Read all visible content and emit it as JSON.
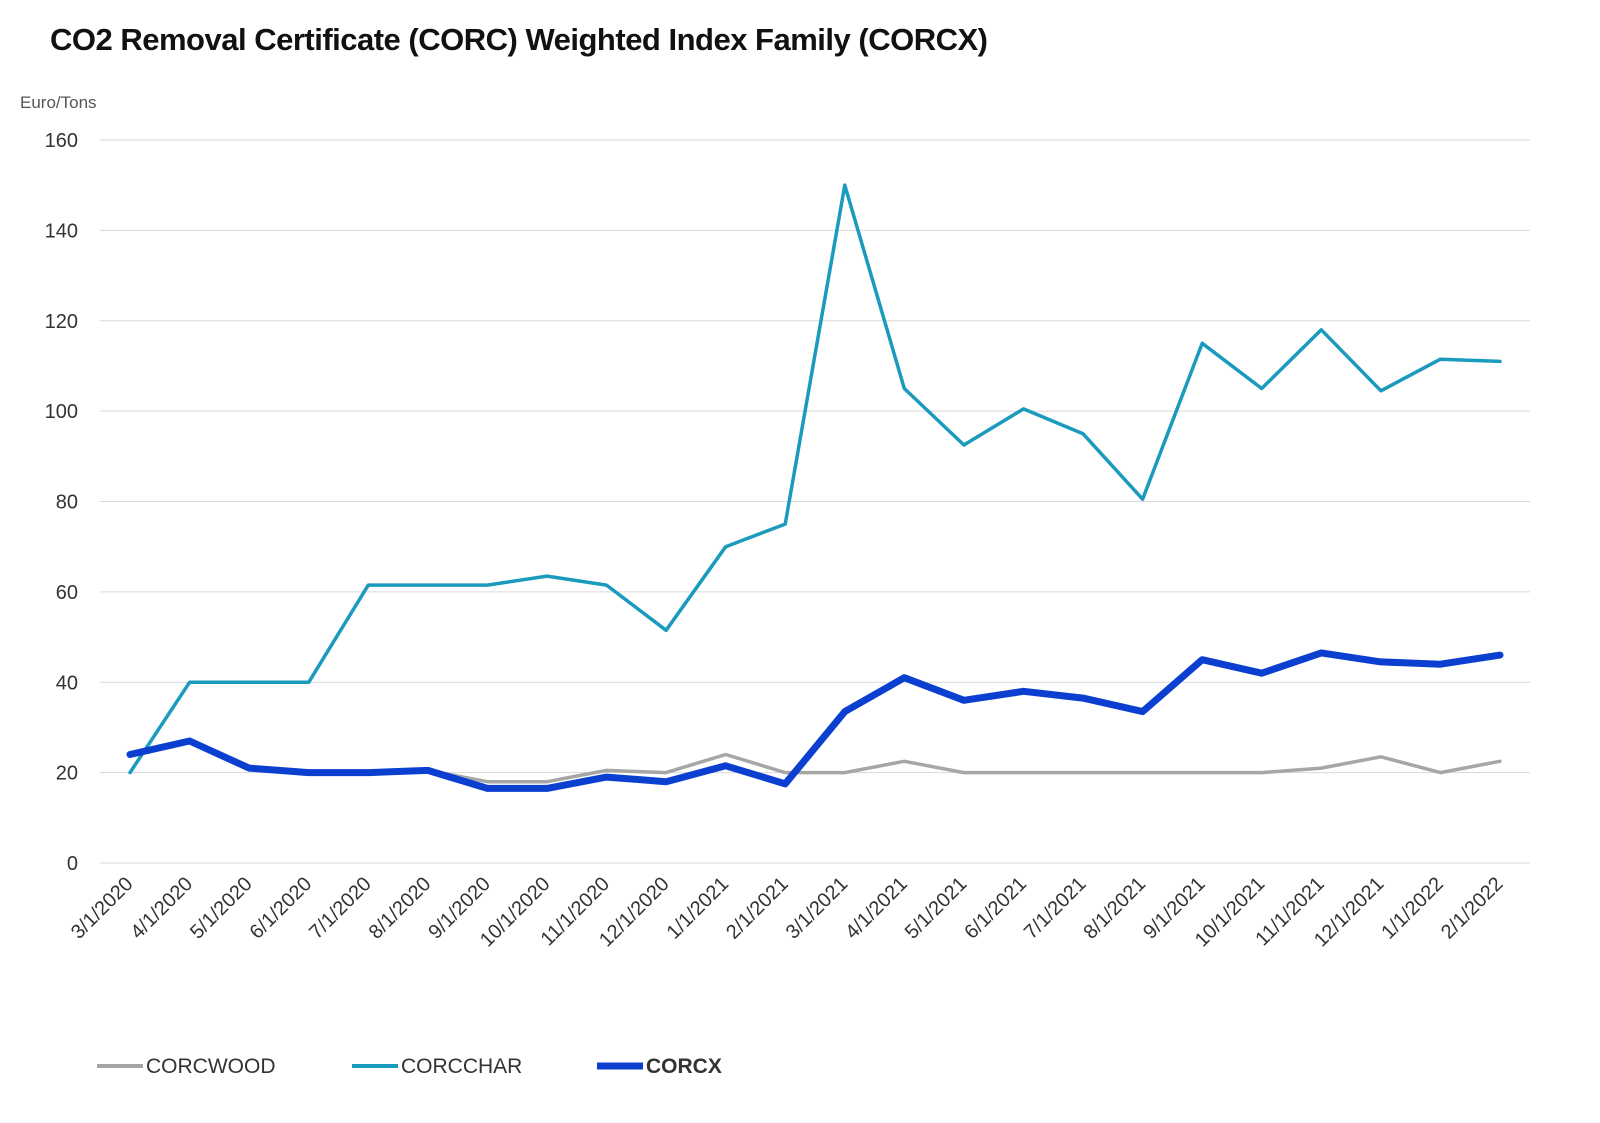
{
  "chart_data": {
    "type": "line",
    "title": "CO2 Removal Certificate (CORC) Weighted Index Family (CORCX)",
    "ylabel": "Euro/Tons",
    "xlabel": "",
    "ylim": [
      0,
      160
    ],
    "yticks": [
      0,
      20,
      40,
      60,
      80,
      100,
      120,
      140,
      160
    ],
    "grid": true,
    "legend_position": "bottom",
    "categories": [
      "3/1/2020",
      "4/1/2020",
      "5/1/2020",
      "6/1/2020",
      "7/1/2020",
      "8/1/2020",
      "9/1/2020",
      "10/1/2020",
      "11/1/2020",
      "12/1/2020",
      "1/1/2021",
      "2/1/2021",
      "3/1/2021",
      "4/1/2021",
      "5/1/2021",
      "6/1/2021",
      "7/1/2021",
      "8/1/2021",
      "9/1/2021",
      "10/1/2021",
      "11/1/2021",
      "12/1/2021",
      "1/1/2022",
      "2/1/2022"
    ],
    "series": [
      {
        "name": "CORCWOOD",
        "color": "#a6a6a6",
        "bold": false,
        "values": [
          24,
          27,
          21,
          20,
          20,
          20.5,
          18,
          18,
          20.5,
          20,
          24,
          20,
          20,
          22.5,
          20,
          20,
          20,
          20,
          20,
          20,
          21,
          23.5,
          20,
          22.5
        ]
      },
      {
        "name": "CORCCHAR",
        "color": "#1a9bbd",
        "bold": false,
        "values": [
          20,
          40,
          40,
          40,
          61.5,
          61.5,
          61.5,
          63.5,
          61.5,
          51.5,
          70,
          75,
          150,
          105,
          92.5,
          100.5,
          95,
          80.5,
          115,
          105,
          118,
          104.5,
          111.5,
          111
        ]
      },
      {
        "name": "CORCX",
        "color": "#0b3fd0",
        "bold": true,
        "values": [
          24,
          27,
          21,
          20,
          20,
          20.5,
          16.5,
          16.5,
          19,
          18,
          21.5,
          17.5,
          33.5,
          41,
          36,
          38,
          36.5,
          33.5,
          45,
          42,
          46.5,
          44.5,
          44,
          46
        ]
      }
    ]
  }
}
